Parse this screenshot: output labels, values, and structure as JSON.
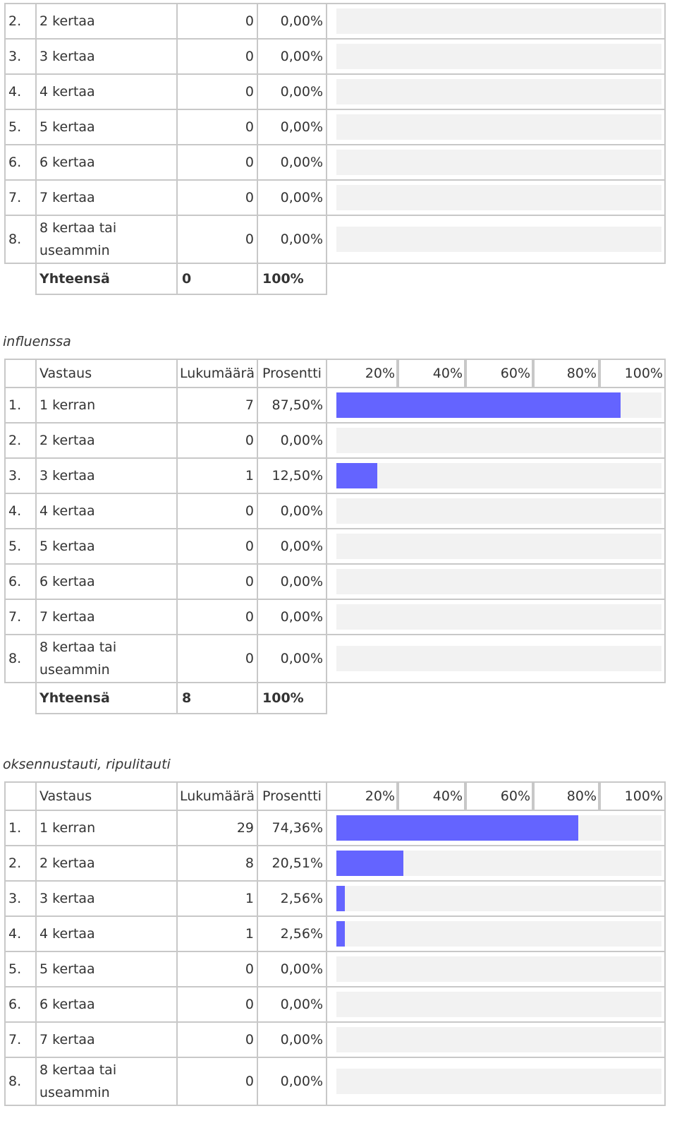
{
  "colors": {
    "bar_fill": "#6464ff",
    "bar_track": "#f2f2f2",
    "border": "#c8c8c8"
  },
  "sections": [
    {
      "caption": "",
      "header": null,
      "rows": [
        {
          "no": "2.",
          "label": "2 kertaa",
          "count": "0",
          "pct": "0,00%",
          "value": 0.0
        },
        {
          "no": "3.",
          "label": "3 kertaa",
          "count": "0",
          "pct": "0,00%",
          "value": 0.0
        },
        {
          "no": "4.",
          "label": "4 kertaa",
          "count": "0",
          "pct": "0,00%",
          "value": 0.0
        },
        {
          "no": "5.",
          "label": "5 kertaa",
          "count": "0",
          "pct": "0,00%",
          "value": 0.0
        },
        {
          "no": "6.",
          "label": "6 kertaa",
          "count": "0",
          "pct": "0,00%",
          "value": 0.0
        },
        {
          "no": "7.",
          "label": "7 kertaa",
          "count": "0",
          "pct": "0,00%",
          "value": 0.0
        },
        {
          "no": "8.",
          "label": "8 kertaa tai",
          "label2": "useammin",
          "count": "0",
          "pct": "0,00%",
          "value": 0.0
        }
      ],
      "total": {
        "label": "Yhteensä",
        "count": "0",
        "pct": "100%"
      }
    },
    {
      "caption": "influenssa",
      "header": {
        "answer": "Vastaus",
        "count": "Lukumäärä",
        "pct": "Prosentti",
        "ticks": [
          "20%",
          "40%",
          "60%",
          "80%",
          "100%"
        ]
      },
      "rows": [
        {
          "no": "1.",
          "label": "1 kerran",
          "count": "7",
          "pct": "87,50%",
          "value": 87.5
        },
        {
          "no": "2.",
          "label": "2 kertaa",
          "count": "0",
          "pct": "0,00%",
          "value": 0.0
        },
        {
          "no": "3.",
          "label": "3 kertaa",
          "count": "1",
          "pct": "12,50%",
          "value": 12.5
        },
        {
          "no": "4.",
          "label": "4 kertaa",
          "count": "0",
          "pct": "0,00%",
          "value": 0.0
        },
        {
          "no": "5.",
          "label": "5 kertaa",
          "count": "0",
          "pct": "0,00%",
          "value": 0.0
        },
        {
          "no": "6.",
          "label": "6 kertaa",
          "count": "0",
          "pct": "0,00%",
          "value": 0.0
        },
        {
          "no": "7.",
          "label": "7 kertaa",
          "count": "0",
          "pct": "0,00%",
          "value": 0.0
        },
        {
          "no": "8.",
          "label": "8 kertaa tai",
          "label2": "useammin",
          "count": "0",
          "pct": "0,00%",
          "value": 0.0
        }
      ],
      "total": {
        "label": "Yhteensä",
        "count": "8",
        "pct": "100%"
      }
    },
    {
      "caption": "oksennustauti, ripulitauti",
      "header": {
        "answer": "Vastaus",
        "count": "Lukumäärä",
        "pct": "Prosentti",
        "ticks": [
          "20%",
          "40%",
          "60%",
          "80%",
          "100%"
        ]
      },
      "rows": [
        {
          "no": "1.",
          "label": "1 kerran",
          "count": "29",
          "pct": "74,36%",
          "value": 74.36
        },
        {
          "no": "2.",
          "label": "2 kertaa",
          "count": "8",
          "pct": "20,51%",
          "value": 20.51
        },
        {
          "no": "3.",
          "label": "3 kertaa",
          "count": "1",
          "pct": "2,56%",
          "value": 2.56
        },
        {
          "no": "4.",
          "label": "4 kertaa",
          "count": "1",
          "pct": "2,56%",
          "value": 2.56
        },
        {
          "no": "5.",
          "label": "5 kertaa",
          "count": "0",
          "pct": "0,00%",
          "value": 0.0
        },
        {
          "no": "6.",
          "label": "6 kertaa",
          "count": "0",
          "pct": "0,00%",
          "value": 0.0
        },
        {
          "no": "7.",
          "label": "7 kertaa",
          "count": "0",
          "pct": "0,00%",
          "value": 0.0
        },
        {
          "no": "8.",
          "label": "8 kertaa tai",
          "label2": "useammin",
          "count": "0",
          "pct": "0,00%",
          "value": 0.0
        }
      ],
      "total": null
    }
  ]
}
